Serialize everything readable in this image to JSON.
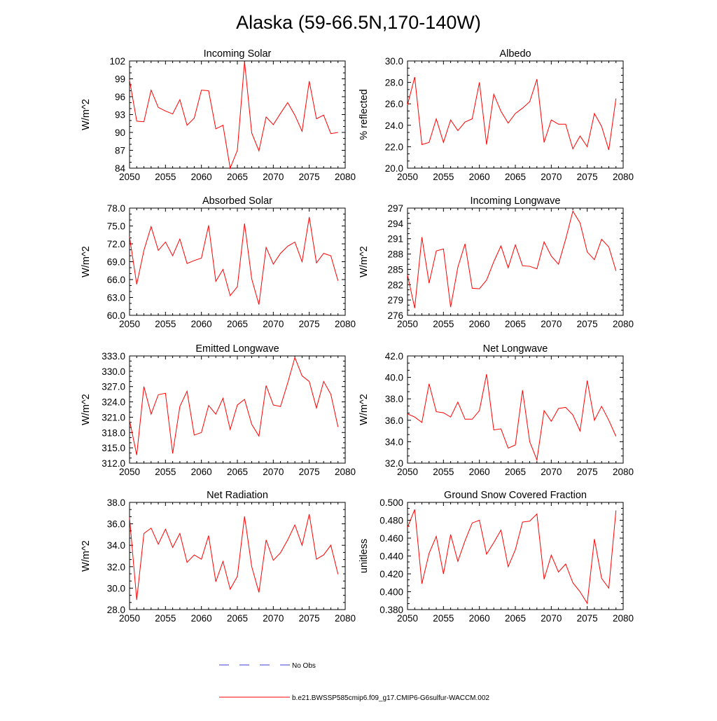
{
  "title": "Alaska (59-66.5N,170-140W)",
  "colors": {
    "model": "#ff0000",
    "obs": "#3b3bd6",
    "axis": "#000000",
    "background": "#ffffff"
  },
  "legend": {
    "obs_label": "No Obs",
    "model_label": "b.e21.BWSSP585cmip6.f09_g17.CMIP6-G6sulfur-WACCM.002"
  },
  "chart_data": [
    {
      "type": "line",
      "title": "Incoming Solar",
      "ylabel": "W/m^2",
      "xlim": [
        2050,
        2080
      ],
      "ylim": [
        84,
        102
      ],
      "xticks": [
        2050,
        2055,
        2060,
        2065,
        2070,
        2075,
        2080
      ],
      "xtick_labels": [
        "2050",
        "2055",
        "2060",
        "2065",
        "2070",
        "2075",
        "2080"
      ],
      "yticks": [
        84,
        87,
        90,
        93,
        96,
        99,
        102
      ],
      "ytick_labels": [
        "84",
        "87",
        "90",
        "93",
        "96",
        "99",
        "102"
      ],
      "x": [
        2050,
        2051,
        2052,
        2053,
        2054,
        2055,
        2056,
        2057,
        2058,
        2059,
        2060,
        2061,
        2062,
        2063,
        2064,
        2065,
        2066,
        2067,
        2068,
        2069,
        2070,
        2071,
        2072,
        2073,
        2074,
        2075,
        2076,
        2077,
        2078,
        2079
      ],
      "series": [
        {
          "values": [
            98.8,
            91.9,
            91.8,
            97.1,
            94.2,
            93.6,
            93.1,
            95.5,
            91.2,
            92.4,
            97.1,
            97.0,
            90.6,
            91.2,
            84.0,
            87.0,
            101.9,
            89.9,
            86.9,
            92.6,
            91.3,
            93.2,
            95.0,
            92.9,
            90.2,
            98.6,
            92.3,
            92.9,
            89.8,
            90.0
          ]
        }
      ],
      "grid": false
    },
    {
      "type": "line",
      "title": "Albedo",
      "ylabel": "% reflected",
      "xlim": [
        2050,
        2080
      ],
      "ylim": [
        20,
        30
      ],
      "xticks": [
        2050,
        2055,
        2060,
        2065,
        2070,
        2075,
        2080
      ],
      "xtick_labels": [
        "2050",
        "2055",
        "2060",
        "2065",
        "2070",
        "2075",
        "2080"
      ],
      "yticks": [
        20,
        22,
        24,
        26,
        28,
        30
      ],
      "ytick_labels": [
        "20.0",
        "22.0",
        "24.0",
        "26.0",
        "28.0",
        "30.0"
      ],
      "x": [
        2050,
        2051,
        2052,
        2053,
        2054,
        2055,
        2056,
        2057,
        2058,
        2059,
        2060,
        2061,
        2062,
        2063,
        2064,
        2065,
        2066,
        2067,
        2068,
        2069,
        2070,
        2071,
        2072,
        2073,
        2074,
        2075,
        2076,
        2077,
        2078,
        2079
      ],
      "series": [
        {
          "values": [
            25.9,
            28.5,
            22.2,
            22.4,
            24.6,
            22.4,
            24.5,
            23.5,
            24.3,
            24.6,
            28.0,
            22.2,
            26.9,
            25.3,
            24.2,
            25.1,
            25.6,
            26.2,
            28.3,
            22.4,
            24.5,
            24.1,
            24.1,
            21.8,
            23.0,
            22.0,
            25.1,
            23.9,
            21.7,
            26.5
          ]
        }
      ],
      "grid": false
    },
    {
      "type": "line",
      "title": "Absorbed Solar",
      "ylabel": "W/m^2",
      "xlim": [
        2050,
        2080
      ],
      "ylim": [
        60,
        78
      ],
      "xticks": [
        2050,
        2055,
        2060,
        2065,
        2070,
        2075,
        2080
      ],
      "xtick_labels": [
        "2050",
        "2055",
        "2060",
        "2065",
        "2070",
        "2075",
        "2080"
      ],
      "yticks": [
        60,
        63,
        66,
        69,
        72,
        75,
        78
      ],
      "ytick_labels": [
        "60.0",
        "63.0",
        "66.0",
        "69.0",
        "72.0",
        "75.0",
        "78.0"
      ],
      "x": [
        2050,
        2051,
        2052,
        2053,
        2054,
        2055,
        2056,
        2057,
        2058,
        2059,
        2060,
        2061,
        2062,
        2063,
        2064,
        2065,
        2066,
        2067,
        2068,
        2069,
        2070,
        2071,
        2072,
        2073,
        2074,
        2075,
        2076,
        2077,
        2078,
        2079
      ],
      "series": [
        {
          "values": [
            73.2,
            65.2,
            70.9,
            74.9,
            70.9,
            72.3,
            70.0,
            72.8,
            68.7,
            69.2,
            69.6,
            75.1,
            65.7,
            67.7,
            63.3,
            64.8,
            75.4,
            66.1,
            61.8,
            71.4,
            68.6,
            70.4,
            71.6,
            72.3,
            69.0,
            76.5,
            68.8,
            70.4,
            70.0,
            65.8
          ]
        }
      ],
      "grid": false
    },
    {
      "type": "line",
      "title": "Incoming Longwave",
      "ylabel": "W/m^2",
      "xlim": [
        2050,
        2080
      ],
      "ylim": [
        276,
        297
      ],
      "xticks": [
        2050,
        2055,
        2060,
        2065,
        2070,
        2075,
        2080
      ],
      "xtick_labels": [
        "2050",
        "2055",
        "2060",
        "2065",
        "2070",
        "2075",
        "2080"
      ],
      "yticks": [
        276,
        279,
        282,
        285,
        288,
        291,
        294,
        297
      ],
      "ytick_labels": [
        "276",
        "279",
        "282",
        "285",
        "288",
        "291",
        "294",
        "297"
      ],
      "x": [
        2050,
        2051,
        2052,
        2053,
        2054,
        2055,
        2056,
        2057,
        2058,
        2059,
        2060,
        2061,
        2062,
        2063,
        2064,
        2065,
        2066,
        2067,
        2068,
        2069,
        2070,
        2071,
        2072,
        2073,
        2074,
        2075,
        2076,
        2077,
        2078,
        2079
      ],
      "series": [
        {
          "values": [
            283.9,
            277.4,
            291.3,
            282.3,
            288.6,
            289.0,
            277.6,
            285.4,
            290.0,
            281.3,
            281.2,
            282.9,
            286.5,
            289.6,
            285.3,
            289.8,
            285.7,
            285.6,
            285.1,
            290.4,
            287.6,
            286.0,
            290.9,
            296.4,
            294.1,
            288.4,
            286.9,
            290.9,
            289.4,
            284.7
          ]
        }
      ],
      "grid": false
    },
    {
      "type": "line",
      "title": "Emitted Longwave",
      "ylabel": "W/m^2",
      "xlim": [
        2050,
        2080
      ],
      "ylim": [
        312,
        333
      ],
      "xticks": [
        2050,
        2055,
        2060,
        2065,
        2070,
        2075,
        2080
      ],
      "xtick_labels": [
        "2050",
        "2055",
        "2060",
        "2065",
        "2070",
        "2075",
        "2080"
      ],
      "yticks": [
        312,
        315,
        318,
        321,
        324,
        327,
        330,
        333
      ],
      "ytick_labels": [
        "312.0",
        "315.0",
        "318.0",
        "321.0",
        "324.0",
        "327.0",
        "330.0",
        "333.0"
      ],
      "x": [
        2050,
        2051,
        2052,
        2053,
        2054,
        2055,
        2056,
        2057,
        2058,
        2059,
        2060,
        2061,
        2062,
        2063,
        2064,
        2065,
        2066,
        2067,
        2068,
        2069,
        2070,
        2071,
        2072,
        2073,
        2074,
        2075,
        2076,
        2077,
        2078,
        2079
      ],
      "series": [
        {
          "values": [
            320.4,
            313.6,
            327.0,
            321.6,
            325.4,
            325.7,
            313.9,
            323.1,
            326.1,
            317.5,
            318.0,
            323.3,
            321.6,
            324.7,
            318.6,
            323.4,
            324.5,
            319.6,
            317.3,
            327.2,
            323.4,
            323.1,
            327.7,
            332.7,
            329.1,
            328.0,
            322.8,
            328.0,
            325.5,
            319.1
          ]
        }
      ],
      "grid": false
    },
    {
      "type": "line",
      "title": "Net Longwave",
      "ylabel": "W/m^2",
      "xlim": [
        2050,
        2080
      ],
      "ylim": [
        32,
        42
      ],
      "xticks": [
        2050,
        2055,
        2060,
        2065,
        2070,
        2075,
        2080
      ],
      "xtick_labels": [
        "2050",
        "2055",
        "2060",
        "2065",
        "2070",
        "2075",
        "2080"
      ],
      "yticks": [
        32,
        34,
        36,
        38,
        40,
        42
      ],
      "ytick_labels": [
        "32.0",
        "34.0",
        "36.0",
        "38.0",
        "40.0",
        "42.0"
      ],
      "x": [
        2050,
        2051,
        2052,
        2053,
        2054,
        2055,
        2056,
        2057,
        2058,
        2059,
        2060,
        2061,
        2062,
        2063,
        2064,
        2065,
        2066,
        2067,
        2068,
        2069,
        2070,
        2071,
        2072,
        2073,
        2074,
        2075,
        2076,
        2077,
        2078,
        2079
      ],
      "series": [
        {
          "values": [
            36.6,
            36.3,
            35.8,
            39.4,
            36.8,
            36.7,
            36.3,
            37.7,
            36.1,
            36.1,
            36.9,
            40.3,
            35.1,
            35.2,
            33.4,
            33.7,
            38.8,
            34.0,
            32.3,
            36.9,
            35.9,
            37.1,
            37.2,
            36.5,
            35.0,
            39.7,
            36.0,
            37.3,
            36.0,
            34.5
          ]
        }
      ],
      "grid": false
    },
    {
      "type": "line",
      "title": "Net Radiation",
      "ylabel": "W/m^2",
      "xlim": [
        2050,
        2080
      ],
      "ylim": [
        28,
        38
      ],
      "xticks": [
        2050,
        2055,
        2060,
        2065,
        2070,
        2075,
        2080
      ],
      "xtick_labels": [
        "2050",
        "2055",
        "2060",
        "2065",
        "2070",
        "2075",
        "2080"
      ],
      "yticks": [
        28,
        30,
        32,
        34,
        36,
        38
      ],
      "ytick_labels": [
        "28.0",
        "30.0",
        "32.0",
        "34.0",
        "36.0",
        "38.0"
      ],
      "x": [
        2050,
        2051,
        2052,
        2053,
        2054,
        2055,
        2056,
        2057,
        2058,
        2059,
        2060,
        2061,
        2062,
        2063,
        2064,
        2065,
        2066,
        2067,
        2068,
        2069,
        2070,
        2071,
        2072,
        2073,
        2074,
        2075,
        2076,
        2077,
        2078,
        2079
      ],
      "series": [
        {
          "values": [
            36.6,
            28.9,
            35.1,
            35.6,
            34.1,
            35.5,
            33.8,
            35.1,
            32.4,
            33.1,
            32.7,
            34.9,
            30.6,
            32.5,
            29.9,
            31.1,
            36.7,
            32.0,
            29.6,
            34.5,
            32.6,
            33.3,
            34.5,
            35.9,
            34.0,
            36.9,
            32.7,
            33.1,
            34.0,
            31.3
          ]
        }
      ],
      "grid": false
    },
    {
      "type": "line",
      "title": "Ground Snow Covered Fraction",
      "ylabel": "unitless",
      "xlim": [
        2050,
        2080
      ],
      "ylim": [
        0.38,
        0.5
      ],
      "xticks": [
        2050,
        2055,
        2060,
        2065,
        2070,
        2075,
        2080
      ],
      "xtick_labels": [
        "2050",
        "2055",
        "2060",
        "2065",
        "2070",
        "2075",
        "2080"
      ],
      "yticks": [
        0.38,
        0.4,
        0.42,
        0.44,
        0.46,
        0.48,
        0.5
      ],
      "ytick_labels": [
        "0.380",
        "0.400",
        "0.420",
        "0.440",
        "0.460",
        "0.480",
        "0.500"
      ],
      "x": [
        2050,
        2051,
        2052,
        2053,
        2054,
        2055,
        2056,
        2057,
        2058,
        2059,
        2060,
        2061,
        2062,
        2063,
        2064,
        2065,
        2066,
        2067,
        2068,
        2069,
        2070,
        2071,
        2072,
        2073,
        2074,
        2075,
        2076,
        2077,
        2078,
        2079
      ],
      "series": [
        {
          "values": [
            0.472,
            0.492,
            0.409,
            0.443,
            0.462,
            0.42,
            0.464,
            0.434,
            0.457,
            0.477,
            0.48,
            0.442,
            0.455,
            0.469,
            0.428,
            0.447,
            0.478,
            0.479,
            0.487,
            0.414,
            0.441,
            0.422,
            0.431,
            0.41,
            0.4,
            0.387,
            0.459,
            0.415,
            0.404,
            0.491
          ]
        }
      ],
      "grid": false
    }
  ]
}
